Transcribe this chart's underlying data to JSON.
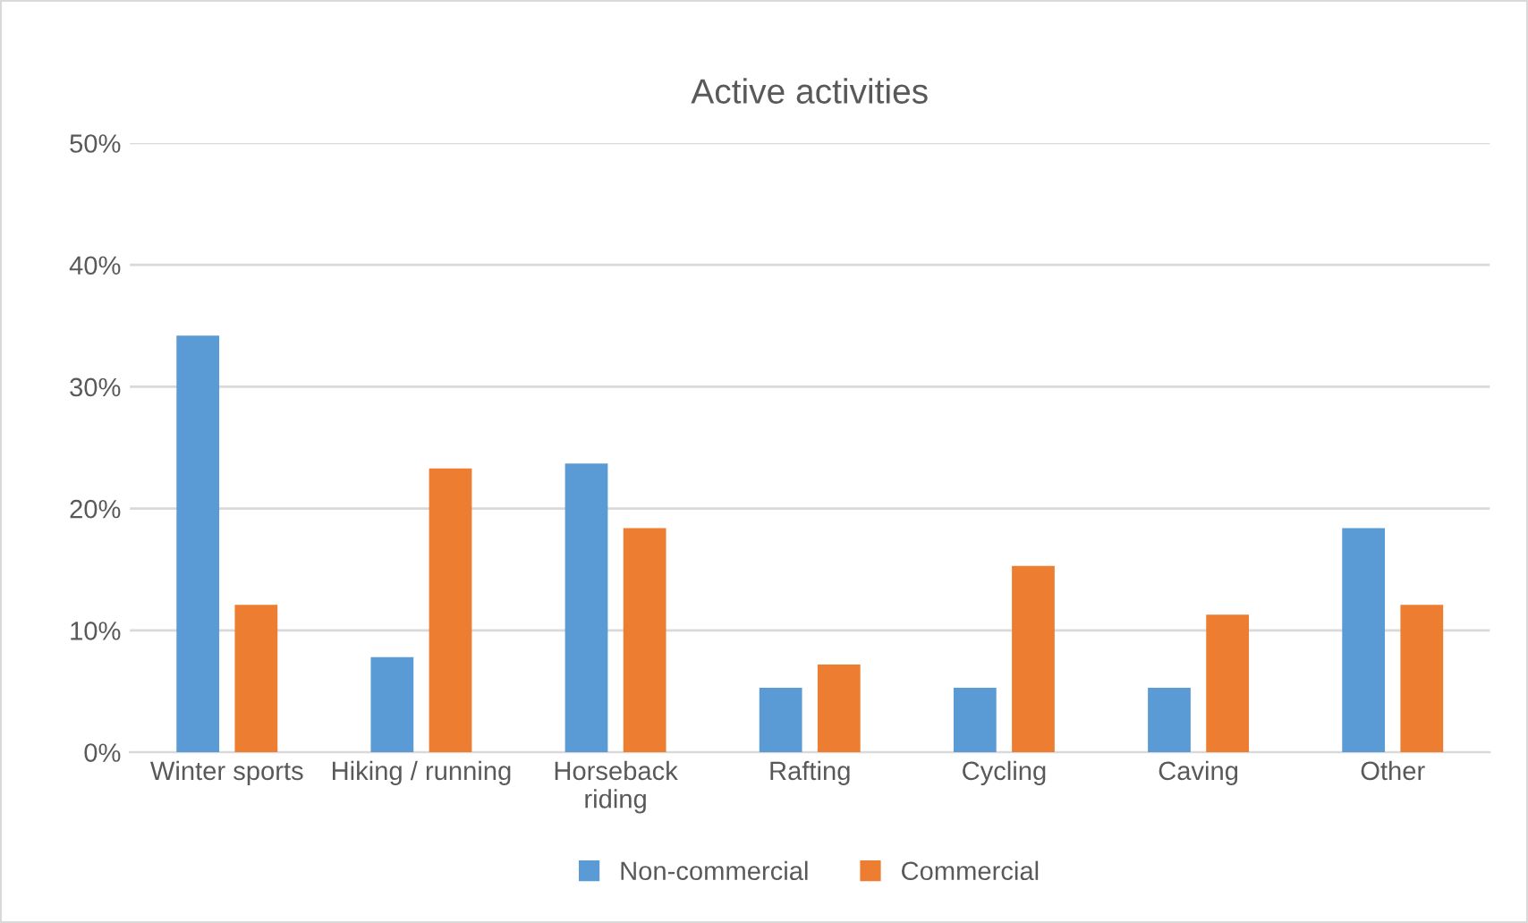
{
  "chart_data": {
    "type": "bar",
    "title": "Active activities",
    "categories": [
      "Winter sports",
      "Hiking / running",
      "Horseback\nriding",
      "Rafting",
      "Cycling",
      "Caving",
      "Other"
    ],
    "series": [
      {
        "name": "Non-commercial",
        "color": "#5b9bd5",
        "values": [
          34.2,
          7.8,
          23.7,
          5.3,
          5.3,
          5.3,
          18.4
        ]
      },
      {
        "name": "Commercial",
        "color": "#ed7d31",
        "values": [
          12.1,
          23.3,
          18.4,
          7.2,
          15.3,
          11.3,
          12.1
        ]
      }
    ],
    "ylim": [
      0,
      50
    ],
    "yticks": [
      {
        "value": 0,
        "label": "0%"
      },
      {
        "value": 10,
        "label": "10%"
      },
      {
        "value": 20,
        "label": "20%"
      },
      {
        "value": 30,
        "label": "30%"
      },
      {
        "value": 40,
        "label": "40%"
      },
      {
        "value": 50,
        "label": "50%"
      }
    ],
    "grid": "y",
    "legend": "bottom"
  }
}
